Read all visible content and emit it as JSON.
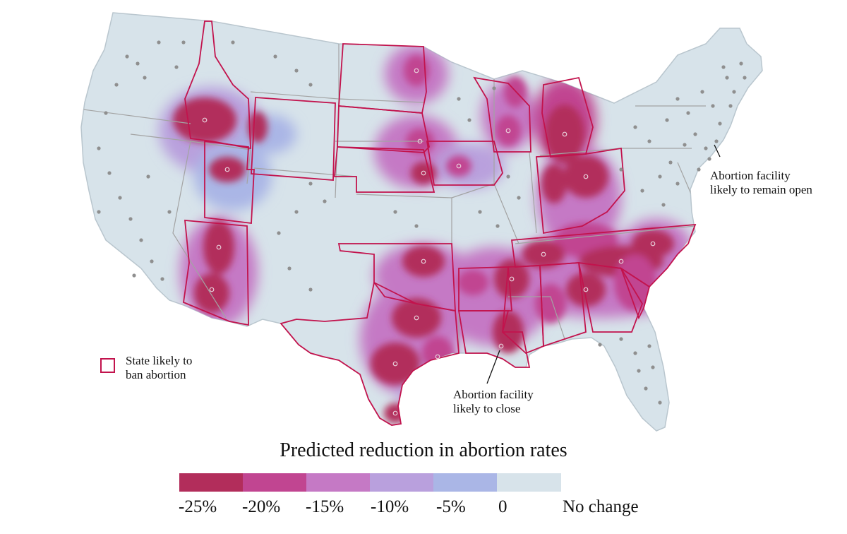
{
  "annotations": {
    "open_line1": "Abortion facility",
    "open_line2": "likely to remain open",
    "close_line1": "Abortion facility",
    "close_line2": "likely to close",
    "ban_line1": "State likely to",
    "ban_line2": "ban abortion"
  },
  "legend": {
    "title": "Predicted reduction in abortion rates",
    "ticks": [
      "-25%",
      "-20%",
      "-15%",
      "-10%",
      "-5%",
      "0",
      "No change"
    ],
    "colors": [
      "#b22d5b",
      "#c14591",
      "#c579c5",
      "#b9a0dd",
      "#aab6e6",
      "#d7e3ea"
    ]
  },
  "colors": {
    "base": "#d7e3ea",
    "border": "#a3a3a3",
    "ban_border": "#c2134d",
    "facility_dot": "#8f8f8f"
  }
}
